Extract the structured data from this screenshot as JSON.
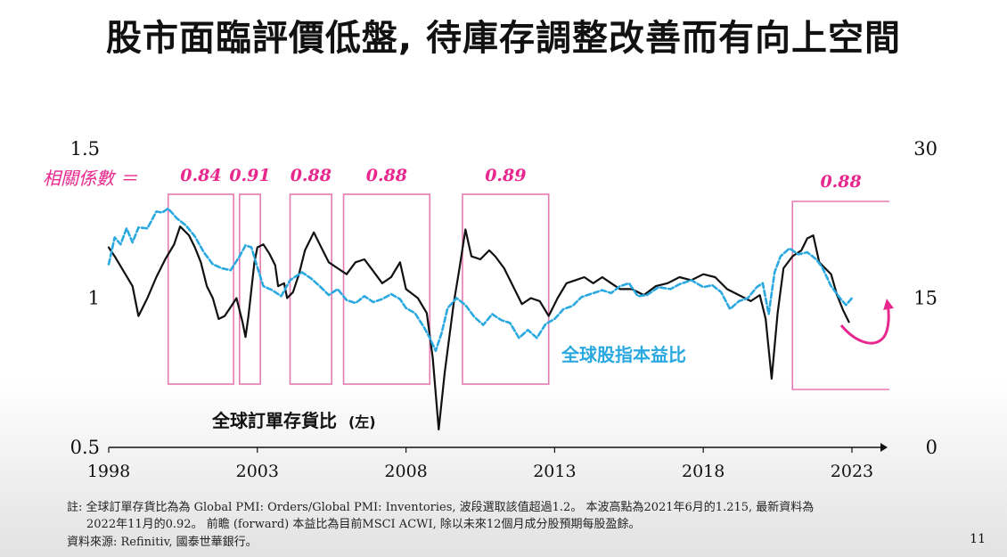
{
  "slide": {
    "title": "股市面臨評價低盤, 待庫存調整改善而有向上空間",
    "page_number": "11"
  },
  "notes": {
    "line1": "註: 全球訂單存貨比為為  Global PMI: Orders/Global PMI: Inventories, 波段選取該值超過1.2。 本波高點為2021年6月的1.215, 最新資料為",
    "line2": "2022年11月的0.92。 前瞻 (forward) 本益比為目前MSCI ACWI, 除以未來12個月成分股預期每股盈餘。",
    "line3": "資料來源: Refinitiv, 國泰世華銀行。"
  },
  "chart_data": {
    "type": "line",
    "xlim": [
      1998,
      2024.2
    ],
    "x_ticks": [
      "1998",
      "2003",
      "2008",
      "2013",
      "2018",
      "2023"
    ],
    "left_axis": {
      "ylim": [
        0.5,
        1.5
      ],
      "ticks": [
        "0.5",
        "1",
        "1.5"
      ]
    },
    "right_axis": {
      "ylim": [
        0,
        30
      ],
      "ticks": [
        "0",
        "15",
        "30"
      ]
    },
    "correlation_label": "相關係數 ＝",
    "series": [
      {
        "name": "全球訂單存貨比",
        "name_suffix": "(左)",
        "axis": "left",
        "color": "#111111",
        "style": "solid",
        "points": [
          [
            1998.0,
            1.17
          ],
          [
            1998.2,
            1.14
          ],
          [
            1998.5,
            1.09
          ],
          [
            1998.8,
            1.04
          ],
          [
            1999.0,
            0.94
          ],
          [
            1999.3,
            1.0
          ],
          [
            1999.6,
            1.07
          ],
          [
            1999.9,
            1.13
          ],
          [
            2000.2,
            1.18
          ],
          [
            2000.4,
            1.24
          ],
          [
            2000.7,
            1.21
          ],
          [
            2000.9,
            1.17
          ],
          [
            2001.1,
            1.12
          ],
          [
            2001.3,
            1.04
          ],
          [
            2001.5,
            1.0
          ],
          [
            2001.7,
            0.93
          ],
          [
            2001.9,
            0.94
          ],
          [
            2002.1,
            0.97
          ],
          [
            2002.3,
            1.0
          ],
          [
            2002.5,
            0.92
          ],
          [
            2002.6,
            0.87
          ],
          [
            2002.7,
            0.94
          ],
          [
            2002.9,
            1.12
          ],
          [
            2003.0,
            1.17
          ],
          [
            2003.2,
            1.18
          ],
          [
            2003.4,
            1.15
          ],
          [
            2003.6,
            1.11
          ],
          [
            2003.7,
            1.04
          ],
          [
            2003.9,
            1.05
          ],
          [
            2004.0,
            1.0
          ],
          [
            2004.2,
            1.02
          ],
          [
            2004.4,
            1.08
          ],
          [
            2004.6,
            1.16
          ],
          [
            2004.9,
            1.22
          ],
          [
            2005.1,
            1.18
          ],
          [
            2005.4,
            1.12
          ],
          [
            2005.7,
            1.1
          ],
          [
            2006.0,
            1.08
          ],
          [
            2006.3,
            1.12
          ],
          [
            2006.6,
            1.13
          ],
          [
            2006.9,
            1.09
          ],
          [
            2007.2,
            1.05
          ],
          [
            2007.5,
            1.07
          ],
          [
            2007.8,
            1.12
          ],
          [
            2008.0,
            1.03
          ],
          [
            2008.4,
            1.0
          ],
          [
            2008.7,
            0.95
          ],
          [
            2008.9,
            0.8
          ],
          [
            2009.1,
            0.56
          ],
          [
            2009.3,
            0.75
          ],
          [
            2009.6,
            0.98
          ],
          [
            2009.8,
            1.1
          ],
          [
            2010.0,
            1.23
          ],
          [
            2010.2,
            1.14
          ],
          [
            2010.5,
            1.13
          ],
          [
            2010.8,
            1.16
          ],
          [
            2011.0,
            1.14
          ],
          [
            2011.3,
            1.1
          ],
          [
            2011.6,
            1.04
          ],
          [
            2011.9,
            0.98
          ],
          [
            2012.2,
            1.0
          ],
          [
            2012.5,
            0.99
          ],
          [
            2012.8,
            0.94
          ],
          [
            2013.1,
            1.0
          ],
          [
            2013.4,
            1.05
          ],
          [
            2013.7,
            1.06
          ],
          [
            2014.0,
            1.07
          ],
          [
            2014.3,
            1.05
          ],
          [
            2014.6,
            1.07
          ],
          [
            2014.9,
            1.05
          ],
          [
            2015.2,
            1.03
          ],
          [
            2015.6,
            1.03
          ],
          [
            2016.0,
            1.01
          ],
          [
            2016.4,
            1.04
          ],
          [
            2016.8,
            1.05
          ],
          [
            2017.2,
            1.07
          ],
          [
            2017.6,
            1.06
          ],
          [
            2018.0,
            1.08
          ],
          [
            2018.4,
            1.07
          ],
          [
            2018.8,
            1.03
          ],
          [
            2019.2,
            1.01
          ],
          [
            2019.6,
            0.99
          ],
          [
            2019.9,
            1.01
          ],
          [
            2020.1,
            0.93
          ],
          [
            2020.3,
            0.73
          ],
          [
            2020.5,
            0.95
          ],
          [
            2020.7,
            1.1
          ],
          [
            2021.0,
            1.14
          ],
          [
            2021.3,
            1.16
          ],
          [
            2021.5,
            1.2
          ],
          [
            2021.7,
            1.21
          ],
          [
            2021.9,
            1.12
          ],
          [
            2022.1,
            1.1
          ],
          [
            2022.3,
            1.08
          ],
          [
            2022.5,
            1.01
          ],
          [
            2022.7,
            0.96
          ],
          [
            2022.9,
            0.92
          ]
        ]
      },
      {
        "name": "全球股指本益比",
        "axis": "right",
        "color": "#2aa8e0",
        "style": "dashed",
        "points": [
          [
            1998.0,
            18.4
          ],
          [
            1998.2,
            21.1
          ],
          [
            1998.4,
            20.4
          ],
          [
            1998.6,
            22.0
          ],
          [
            1998.8,
            20.6
          ],
          [
            1999.0,
            22.1
          ],
          [
            1999.3,
            22.0
          ],
          [
            1999.6,
            23.7
          ],
          [
            1999.8,
            23.6
          ],
          [
            2000.0,
            24.0
          ],
          [
            2000.3,
            23.0
          ],
          [
            2000.6,
            22.3
          ],
          [
            2000.9,
            21.2
          ],
          [
            2001.2,
            19.6
          ],
          [
            2001.5,
            18.4
          ],
          [
            2001.8,
            18.0
          ],
          [
            2002.1,
            17.8
          ],
          [
            2002.4,
            19.2
          ],
          [
            2002.6,
            20.3
          ],
          [
            2002.8,
            20.1
          ],
          [
            2003.0,
            18.1
          ],
          [
            2003.2,
            16.2
          ],
          [
            2003.5,
            15.8
          ],
          [
            2003.8,
            15.2
          ],
          [
            2004.1,
            16.8
          ],
          [
            2004.5,
            17.6
          ],
          [
            2004.8,
            17.0
          ],
          [
            2005.1,
            16.2
          ],
          [
            2005.4,
            15.3
          ],
          [
            2005.7,
            15.9
          ],
          [
            2006.0,
            14.8
          ],
          [
            2006.3,
            14.5
          ],
          [
            2006.6,
            15.2
          ],
          [
            2006.9,
            14.6
          ],
          [
            2007.2,
            14.9
          ],
          [
            2007.5,
            15.4
          ],
          [
            2007.8,
            14.9
          ],
          [
            2008.0,
            14.0
          ],
          [
            2008.3,
            13.5
          ],
          [
            2008.6,
            12.1
          ],
          [
            2008.8,
            11.0
          ],
          [
            2009.0,
            9.7
          ],
          [
            2009.2,
            11.5
          ],
          [
            2009.4,
            14.0
          ],
          [
            2009.7,
            15.0
          ],
          [
            2010.0,
            14.3
          ],
          [
            2010.3,
            13.1
          ],
          [
            2010.6,
            12.3
          ],
          [
            2010.9,
            13.4
          ],
          [
            2011.2,
            12.8
          ],
          [
            2011.5,
            12.5
          ],
          [
            2011.8,
            11.0
          ],
          [
            2012.1,
            11.8
          ],
          [
            2012.4,
            11.0
          ],
          [
            2012.7,
            12.4
          ],
          [
            2013.0,
            12.9
          ],
          [
            2013.3,
            13.9
          ],
          [
            2013.6,
            14.2
          ],
          [
            2013.9,
            15.1
          ],
          [
            2014.2,
            15.4
          ],
          [
            2014.6,
            15.8
          ],
          [
            2014.9,
            15.5
          ],
          [
            2015.2,
            16.2
          ],
          [
            2015.5,
            16.5
          ],
          [
            2015.8,
            15.2
          ],
          [
            2016.1,
            15.3
          ],
          [
            2016.5,
            16.1
          ],
          [
            2016.9,
            15.9
          ],
          [
            2017.2,
            16.4
          ],
          [
            2017.6,
            16.8
          ],
          [
            2018.0,
            16.1
          ],
          [
            2018.3,
            16.3
          ],
          [
            2018.6,
            15.6
          ],
          [
            2018.9,
            13.9
          ],
          [
            2019.2,
            14.7
          ],
          [
            2019.5,
            15.0
          ],
          [
            2019.8,
            16.1
          ],
          [
            2020.0,
            16.5
          ],
          [
            2020.2,
            13.4
          ],
          [
            2020.4,
            17.6
          ],
          [
            2020.6,
            19.2
          ],
          [
            2020.9,
            20.0
          ],
          [
            2021.2,
            19.4
          ],
          [
            2021.5,
            19.6
          ],
          [
            2021.8,
            18.9
          ],
          [
            2022.0,
            18.1
          ],
          [
            2022.3,
            16.2
          ],
          [
            2022.6,
            15.0
          ],
          [
            2022.8,
            14.3
          ],
          [
            2023.0,
            15.0
          ]
        ]
      }
    ],
    "windows": [
      {
        "x0": 2000.0,
        "x1": 2002.2,
        "label": "0.84"
      },
      {
        "x0": 2002.4,
        "x1": 2003.1,
        "label": "0.91"
      },
      {
        "x0": 2004.1,
        "x1": 2005.5,
        "label": "0.88"
      },
      {
        "x0": 2005.9,
        "x1": 2008.8,
        "label": "0.88"
      },
      {
        "x0": 2009.9,
        "x1": 2012.8,
        "label": "0.89"
      },
      {
        "x0": 2021.0,
        "x1": 2022.7,
        "label": "0.88",
        "open_right": true
      }
    ],
    "legend": {
      "position": "in-plot"
    }
  }
}
